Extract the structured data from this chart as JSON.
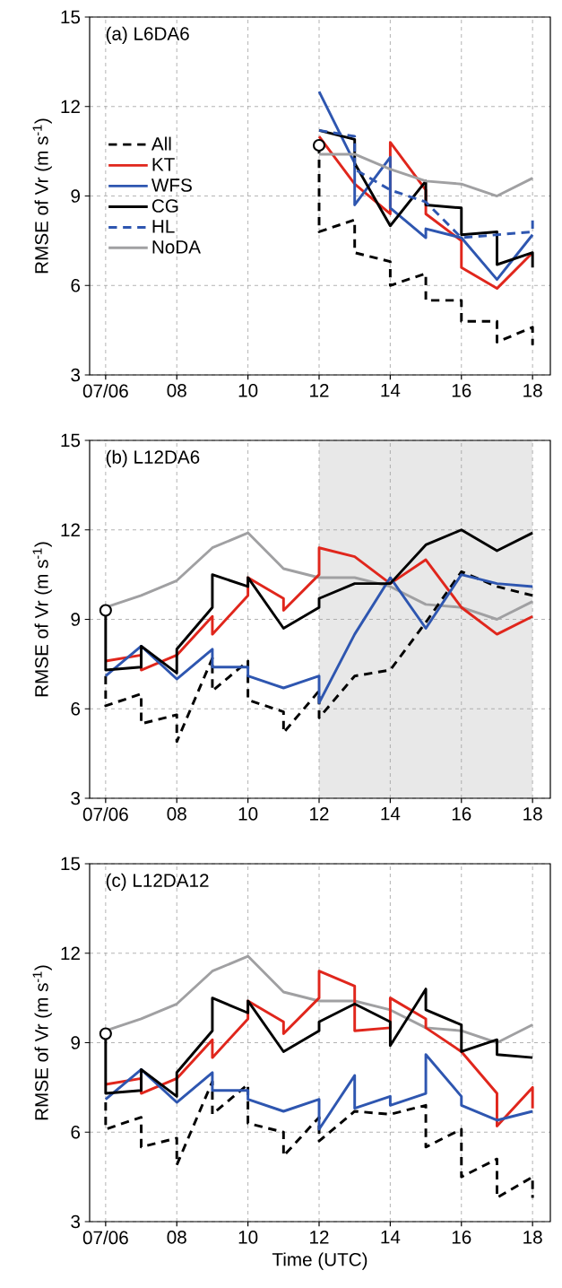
{
  "chart_data": [
    {
      "type": "line",
      "title": "(a) L6DA6",
      "ylabel": "RMSE of Vr (m s$^{-1}$)",
      "xlim": [
        "--07-06T05:33",
        "--07-06T18:30"
      ],
      "ylim": [
        3,
        15
      ],
      "xticks": [
        {
          "value": "--07-06T06:00",
          "label": "07/06"
        },
        {
          "value": "--07-06T08:00",
          "label": "08"
        },
        {
          "value": "--07-06T10:00",
          "label": "10"
        },
        {
          "value": "--07-06T12:00",
          "label": "12"
        },
        {
          "value": "--07-06T14:00",
          "label": "14"
        },
        {
          "value": "--07-06T16:00",
          "label": "16"
        },
        {
          "value": "--07-06T18:00",
          "label": "18"
        }
      ],
      "yticks": [
        3,
        6,
        9,
        12,
        15
      ],
      "grid": true,
      "legend": "left",
      "series": [
        {
          "name": "All",
          "color": "#000000",
          "line_style": "dashed",
          "x": [
            "--07-06T12:00",
            "--07-06T12:00",
            "--07-06T13:00",
            "--07-06T13:00",
            "--07-06T14:00",
            "--07-06T14:00",
            "--07-06T15:00",
            "--07-06T15:00",
            "--07-06T16:00",
            "--07-06T16:00",
            "--07-06T17:00",
            "--07-06T17:00",
            "--07-06T18:00",
            "--07-06T18:00"
          ],
          "values": [
            10.7,
            7.8,
            8.2,
            7.1,
            6.8,
            6.0,
            6.4,
            5.5,
            5.5,
            4.8,
            4.8,
            4.1,
            4.6,
            4.0
          ]
        },
        {
          "name": "KT",
          "color": "#e0261c",
          "line_style": "solid",
          "x": [
            "--07-06T12:00",
            "--07-06T13:00",
            "--07-06T14:00",
            "--07-06T14:00",
            "--07-06T15:00",
            "--07-06T15:00",
            "--07-06T16:00",
            "--07-06T16:00",
            "--07-06T17:00",
            "--07-06T18:00"
          ],
          "values": [
            11.0,
            9.4,
            8.4,
            10.8,
            9.2,
            8.4,
            7.5,
            6.6,
            5.9,
            7.1
          ]
        },
        {
          "name": "WFS",
          "color": "#2e56b0",
          "line_style": "solid",
          "x": [
            "--07-06T12:00",
            "--07-06T13:00",
            "--07-06T13:00",
            "--07-06T14:00",
            "--07-06T14:00",
            "--07-06T15:00",
            "--07-06T15:00",
            "--07-06T16:00",
            "--07-06T17:00",
            "--07-06T18:00"
          ],
          "values": [
            12.5,
            10.1,
            8.7,
            10.3,
            8.6,
            7.6,
            7.9,
            7.6,
            6.2,
            7.7
          ]
        },
        {
          "name": "CG",
          "color": "#000000",
          "line_style": "solid",
          "x": [
            "--07-06T12:00",
            "--07-06T13:00",
            "--07-06T13:00",
            "--07-06T14:00",
            "--07-06T15:00",
            "--07-06T15:00",
            "--07-06T16:00",
            "--07-06T16:00",
            "--07-06T17:00",
            "--07-06T17:00",
            "--07-06T18:00",
            "--07-06T18:00"
          ],
          "values": [
            11.2,
            10.9,
            10.1,
            8.0,
            9.5,
            8.7,
            8.6,
            7.7,
            7.8,
            6.7,
            7.1,
            6.6
          ]
        },
        {
          "name": "HL",
          "color": "#2e56b0",
          "line_style": "dashed",
          "x": [
            "--07-06T12:00",
            "--07-06T13:00",
            "--07-06T13:00",
            "--07-06T14:00",
            "--07-06T15:00",
            "--07-06T16:00",
            "--07-06T17:00",
            "--07-06T18:00",
            "--07-06T18:00"
          ],
          "values": [
            11.2,
            11.0,
            9.9,
            9.2,
            8.8,
            7.6,
            7.7,
            7.8,
            8.2
          ]
        },
        {
          "name": "NoDA",
          "color": "#a0a0a2",
          "line_style": "solid",
          "x": [
            "--07-06T12:00",
            "--07-06T13:00",
            "--07-06T14:00",
            "--07-06T15:00",
            "--07-06T16:00",
            "--07-06T17:00",
            "--07-06T18:00"
          ],
          "values": [
            10.4,
            10.4,
            9.9,
            9.5,
            9.4,
            9.0,
            9.6
          ]
        },
        {
          "type": "scatter",
          "color": "#000000",
          "marker": "circle",
          "x": [
            "--07-06T12:00"
          ],
          "values": [
            10.7
          ]
        }
      ]
    },
    {
      "type": "line",
      "title": "(b) L12DA6",
      "ylabel": "RMSE of Vr (m s$^{-1}$)",
      "xlim": [
        "--07-06T05:33",
        "--07-06T18:30"
      ],
      "ylim": [
        3,
        15
      ],
      "xticks": [
        {
          "value": "--07-06T06:00",
          "label": "07/06"
        },
        {
          "value": "--07-06T08:00",
          "label": "08"
        },
        {
          "value": "--07-06T10:00",
          "label": "10"
        },
        {
          "value": "--07-06T12:00",
          "label": "12"
        },
        {
          "value": "--07-06T14:00",
          "label": "14"
        },
        {
          "value": "--07-06T16:00",
          "label": "16"
        },
        {
          "value": "--07-06T18:00",
          "label": "18"
        }
      ],
      "yticks": [
        3,
        6,
        9,
        12,
        15
      ],
      "grid": true,
      "bands": [
        {
          "axis": "x",
          "from": "--07-06T12:00",
          "to": "--07-06T18:00",
          "color": "#e8e8e8"
        }
      ],
      "series": [
        {
          "color": "#a0a0a2",
          "line_style": "solid",
          "x": [
            "--07-06T06:00",
            "--07-06T07:00",
            "--07-06T08:00",
            "--07-06T09:00",
            "--07-06T10:00",
            "--07-06T11:00",
            "--07-06T12:00",
            "--07-06T13:00",
            "--07-06T14:00",
            "--07-06T15:00",
            "--07-06T16:00",
            "--07-06T17:00",
            "--07-06T18:00"
          ],
          "values": [
            9.4,
            9.8,
            10.3,
            11.4,
            11.9,
            10.7,
            10.4,
            10.4,
            10.1,
            9.5,
            9.4,
            9.0,
            9.6
          ]
        },
        {
          "color": "#000000",
          "line_style": "dashed",
          "x": [
            "--07-06T06:00",
            "--07-06T06:00",
            "--07-06T07:00",
            "--07-06T07:00",
            "--07-06T08:00",
            "--07-06T08:00",
            "--07-06T09:00",
            "--07-06T09:00",
            "--07-06T10:00",
            "--07-06T10:00",
            "--07-06T11:00",
            "--07-06T11:00",
            "--07-06T12:00",
            "--07-06T12:00",
            "--07-06T13:00",
            "--07-06T14:00",
            "--07-06T15:00",
            "--07-06T16:00",
            "--07-06T17:00",
            "--07-06T18:00"
          ],
          "values": [
            7.1,
            6.1,
            6.5,
            5.5,
            5.8,
            4.9,
            7.7,
            6.6,
            7.6,
            6.3,
            5.9,
            5.2,
            6.6,
            5.7,
            7.1,
            7.3,
            8.9,
            10.6,
            10.1,
            9.8
          ]
        },
        {
          "color": "#e0261c",
          "line_style": "solid",
          "x": [
            "--07-06T06:00",
            "--07-06T07:00",
            "--07-06T07:00",
            "--07-06T08:00",
            "--07-06T09:00",
            "--07-06T09:00",
            "--07-06T10:00",
            "--07-06T10:00",
            "--07-06T11:00",
            "--07-06T11:00",
            "--07-06T12:00",
            "--07-06T12:00",
            "--07-06T13:00",
            "--07-06T14:00",
            "--07-06T15:00",
            "--07-06T16:00",
            "--07-06T17:00",
            "--07-06T18:00"
          ],
          "values": [
            7.6,
            7.8,
            7.3,
            7.8,
            9.1,
            8.5,
            9.8,
            10.4,
            9.7,
            9.3,
            10.5,
            11.4,
            11.1,
            10.2,
            11.0,
            9.4,
            8.5,
            9.1
          ]
        },
        {
          "color": "#2e56b0",
          "line_style": "solid",
          "x": [
            "--07-06T06:00",
            "--07-06T07:00",
            "--07-06T08:00",
            "--07-06T09:00",
            "--07-06T09:00",
            "--07-06T10:00",
            "--07-06T10:00",
            "--07-06T11:00",
            "--07-06T12:00",
            "--07-06T12:00",
            "--07-06T13:00",
            "--07-06T14:00",
            "--07-06T15:00",
            "--07-06T16:00",
            "--07-06T17:00",
            "--07-06T18:00"
          ],
          "values": [
            7.1,
            8.1,
            7.0,
            8.0,
            7.4,
            7.4,
            7.1,
            6.7,
            7.1,
            6.2,
            8.5,
            10.4,
            8.7,
            10.5,
            10.2,
            10.1
          ]
        },
        {
          "color": "#000000",
          "line_style": "solid",
          "x": [
            "--07-06T06:00",
            "--07-06T06:00",
            "--07-06T07:00",
            "--07-06T07:00",
            "--07-06T08:00",
            "--07-06T08:00",
            "--07-06T09:00",
            "--07-06T09:00",
            "--07-06T10:00",
            "--07-06T10:00",
            "--07-06T11:00",
            "--07-06T12:00",
            "--07-06T12:00",
            "--07-06T13:00",
            "--07-06T14:00",
            "--07-06T15:00",
            "--07-06T16:00",
            "--07-06T17:00",
            "--07-06T18:00"
          ],
          "values": [
            9.3,
            7.3,
            7.4,
            8.1,
            7.2,
            8.0,
            9.4,
            10.5,
            10.1,
            10.4,
            8.7,
            9.4,
            9.7,
            10.2,
            10.2,
            11.5,
            12.0,
            11.3,
            11.9
          ]
        },
        {
          "type": "scatter",
          "color": "#000000",
          "marker": "circle",
          "x": [
            "--07-06T06:00"
          ],
          "values": [
            9.3
          ]
        }
      ]
    },
    {
      "type": "line",
      "title": "(c) L12DA12",
      "xlabel": "Time (UTC)",
      "ylabel": "RMSE of Vr (m s$^{-1}$)",
      "xlim": [
        "--07-06T05:33",
        "--07-06T18:30"
      ],
      "ylim": [
        3,
        15
      ],
      "xticks": [
        {
          "value": "--07-06T06:00",
          "label": "07/06"
        },
        {
          "value": "--07-06T08:00",
          "label": "08"
        },
        {
          "value": "--07-06T10:00",
          "label": "10"
        },
        {
          "value": "--07-06T12:00",
          "label": "12"
        },
        {
          "value": "--07-06T14:00",
          "label": "14"
        },
        {
          "value": "--07-06T16:00",
          "label": "16"
        },
        {
          "value": "--07-06T18:00",
          "label": "18"
        }
      ],
      "yticks": [
        3,
        6,
        9,
        12,
        15
      ],
      "grid": true,
      "series": [
        {
          "color": "#a0a0a2",
          "line_style": "solid",
          "x": [
            "--07-06T06:00",
            "--07-06T07:00",
            "--07-06T08:00",
            "--07-06T09:00",
            "--07-06T10:00",
            "--07-06T11:00",
            "--07-06T12:00",
            "--07-06T13:00",
            "--07-06T14:00",
            "--07-06T15:00",
            "--07-06T16:00",
            "--07-06T17:00",
            "--07-06T18:00"
          ],
          "values": [
            9.4,
            9.8,
            10.3,
            11.4,
            11.9,
            10.7,
            10.4,
            10.4,
            10.1,
            9.5,
            9.4,
            9.0,
            9.6
          ]
        },
        {
          "color": "#000000",
          "line_style": "dashed",
          "x": [
            "--07-06T06:00",
            "--07-06T06:00",
            "--07-06T07:00",
            "--07-06T07:00",
            "--07-06T08:00",
            "--07-06T08:00",
            "--07-06T09:00",
            "--07-06T09:00",
            "--07-06T10:00",
            "--07-06T10:00",
            "--07-06T11:00",
            "--07-06T11:00",
            "--07-06T12:00",
            "--07-06T12:00",
            "--07-06T13:00",
            "--07-06T14:00",
            "--07-06T15:00",
            "--07-06T15:00",
            "--07-06T16:00",
            "--07-06T16:00",
            "--07-06T17:00",
            "--07-06T17:00",
            "--07-06T18:00",
            "--07-06T18:00"
          ],
          "values": [
            7.0,
            6.1,
            6.5,
            5.5,
            5.8,
            4.9,
            7.7,
            6.6,
            7.6,
            6.3,
            6.0,
            5.2,
            6.5,
            5.7,
            6.7,
            6.6,
            6.9,
            5.5,
            6.1,
            4.5,
            5.1,
            3.8,
            4.5,
            3.8
          ]
        },
        {
          "color": "#e0261c",
          "line_style": "solid",
          "x": [
            "--07-06T06:00",
            "--07-06T07:00",
            "--07-06T07:00",
            "--07-06T08:00",
            "--07-06T09:00",
            "--07-06T09:00",
            "--07-06T10:00",
            "--07-06T10:00",
            "--07-06T11:00",
            "--07-06T11:00",
            "--07-06T12:00",
            "--07-06T12:00",
            "--07-06T13:00",
            "--07-06T13:00",
            "--07-06T14:00",
            "--07-06T14:00",
            "--07-06T15:00",
            "--07-06T15:00",
            "--07-06T16:00",
            "--07-06T17:00",
            "--07-06T17:00",
            "--07-06T18:00",
            "--07-06T18:00"
          ],
          "values": [
            7.6,
            7.8,
            7.3,
            7.8,
            9.1,
            8.5,
            9.8,
            10.4,
            9.7,
            9.3,
            10.5,
            11.4,
            10.9,
            9.4,
            9.5,
            10.5,
            9.8,
            9.5,
            8.7,
            7.3,
            6.2,
            7.5,
            6.8
          ]
        },
        {
          "color": "#2e56b0",
          "line_style": "solid",
          "x": [
            "--07-06T06:00",
            "--07-06T07:00",
            "--07-06T08:00",
            "--07-06T09:00",
            "--07-06T09:00",
            "--07-06T10:00",
            "--07-06T10:00",
            "--07-06T11:00",
            "--07-06T12:00",
            "--07-06T12:00",
            "--07-06T13:00",
            "--07-06T13:00",
            "--07-06T14:00",
            "--07-06T14:00",
            "--07-06T15:00",
            "--07-06T15:00",
            "--07-06T16:00",
            "--07-06T16:00",
            "--07-06T17:00",
            "--07-06T18:00"
          ],
          "values": [
            7.1,
            8.1,
            7.0,
            8.0,
            7.4,
            7.4,
            7.1,
            6.7,
            7.1,
            6.1,
            7.9,
            6.8,
            7.2,
            6.9,
            7.3,
            8.6,
            7.2,
            6.9,
            6.4,
            6.7
          ]
        },
        {
          "color": "#000000",
          "line_style": "solid",
          "x": [
            "--07-06T06:00",
            "--07-06T06:00",
            "--07-06T07:00",
            "--07-06T07:00",
            "--07-06T08:00",
            "--07-06T08:00",
            "--07-06T09:00",
            "--07-06T09:00",
            "--07-06T10:00",
            "--07-06T10:00",
            "--07-06T11:00",
            "--07-06T12:00",
            "--07-06T12:00",
            "--07-06T13:00",
            "--07-06T14:00",
            "--07-06T14:00",
            "--07-06T15:00",
            "--07-06T15:00",
            "--07-06T16:00",
            "--07-06T16:00",
            "--07-06T17:00",
            "--07-06T17:00",
            "--07-06T18:00"
          ],
          "values": [
            9.3,
            7.3,
            7.4,
            8.1,
            7.2,
            8.0,
            9.4,
            10.5,
            10.0,
            10.4,
            8.7,
            9.4,
            9.7,
            10.3,
            9.7,
            8.9,
            10.8,
            10.1,
            9.6,
            8.7,
            9.1,
            8.6,
            8.5
          ]
        },
        {
          "type": "scatter",
          "color": "#000000",
          "marker": "circle",
          "x": [
            "--07-06T06:00"
          ],
          "values": [
            9.3
          ]
        }
      ]
    }
  ]
}
